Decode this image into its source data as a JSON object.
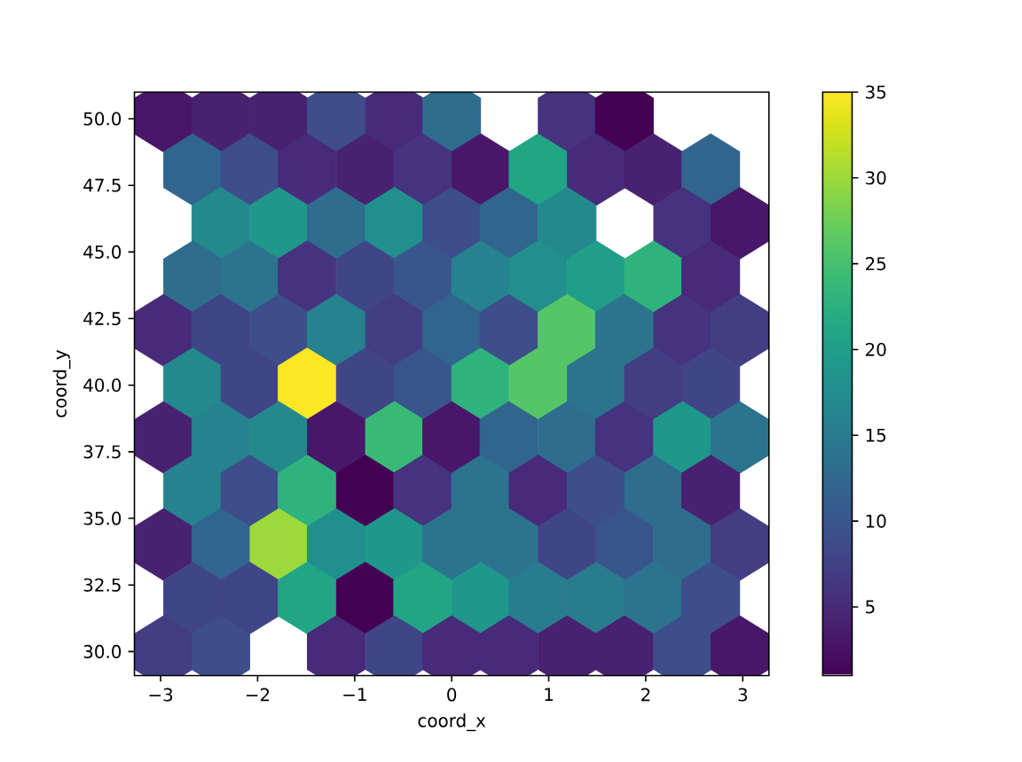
{
  "chart_data": {
    "type": "scatter",
    "xlabel": "coord_x",
    "ylabel": "coord_y",
    "x": [
      -2.97,
      -2.38,
      -1.78,
      -1.19,
      -0.59,
      0,
      1.19,
      1.78,
      -2.67,
      -2.08,
      -1.49,
      -0.89,
      -0.3,
      0.3,
      0.89,
      1.49,
      2.08,
      2.67,
      -2.38,
      -1.78,
      -1.19,
      -0.59,
      0,
      0.59,
      1.19,
      2.38,
      2.97,
      -2.67,
      -2.08,
      -1.49,
      -0.89,
      -0.3,
      0.3,
      0.89,
      1.49,
      2.08,
      2.67,
      -2.97,
      -2.38,
      -1.78,
      -1.19,
      -0.59,
      0,
      0.59,
      1.19,
      1.78,
      2.38,
      2.97,
      -2.67,
      -2.08,
      -1.49,
      -0.89,
      -0.3,
      0.3,
      0.89,
      1.49,
      2.08,
      2.67,
      -2.97,
      -2.38,
      -1.78,
      -1.19,
      -0.59,
      0,
      0.59,
      1.19,
      1.78,
      2.38,
      2.97,
      -2.67,
      -2.08,
      -1.49,
      -0.89,
      -0.3,
      0.3,
      0.89,
      1.49,
      2.08,
      2.67,
      -2.97,
      -2.38,
      -1.78,
      -1.19,
      -0.59,
      0,
      0.59,
      1.19,
      1.78,
      2.38,
      2.97,
      -2.67,
      -2.08,
      -1.49,
      -0.89,
      -0.3,
      0.3,
      0.89,
      1.49,
      2.08,
      2.67,
      -2.97,
      -2.38,
      -1.19,
      -0.59,
      0,
      0.59,
      1.19,
      1.78,
      2.38,
      2.97
    ],
    "values": [
      50.1,
      50.1,
      50.1,
      50.1,
      50.1,
      50.1,
      50.1,
      50.1,
      48.09,
      48.09,
      48.09,
      48.09,
      48.09,
      48.09,
      48.09,
      48.09,
      48.09,
      48.09,
      46.08,
      46.08,
      46.08,
      46.08,
      46.08,
      46.08,
      46.08,
      46.08,
      46.08,
      44.07,
      44.07,
      44.07,
      44.07,
      44.07,
      44.07,
      44.07,
      44.07,
      44.07,
      44.07,
      42.06,
      42.06,
      42.06,
      42.06,
      42.06,
      42.06,
      42.06,
      42.06,
      42.06,
      42.06,
      42.06,
      40.05,
      40.05,
      40.05,
      40.05,
      40.05,
      40.05,
      40.05,
      40.05,
      40.05,
      40.05,
      38.04,
      38.04,
      38.04,
      38.04,
      38.04,
      38.04,
      38.04,
      38.04,
      38.04,
      38.04,
      38.04,
      36.03,
      36.03,
      36.03,
      36.03,
      36.03,
      36.03,
      36.03,
      36.03,
      36.03,
      36.03,
      34.02,
      34.02,
      34.02,
      34.02,
      34.02,
      34.02,
      34.02,
      34.02,
      34.02,
      34.02,
      34.02,
      32.01,
      32.01,
      32.01,
      32.01,
      32.01,
      32.01,
      32.01,
      32.01,
      32.01,
      32.01,
      30,
      30,
      30,
      30,
      30,
      30,
      30,
      30,
      30,
      30
    ],
    "cvalues": [
      3,
      4,
      4,
      9,
      5,
      13,
      6,
      1,
      12,
      9,
      5,
      4,
      6,
      3,
      21,
      5,
      4,
      12,
      17,
      19,
      13,
      18,
      9,
      12,
      17,
      6,
      3,
      13,
      14,
      6,
      8,
      10,
      16,
      18,
      20,
      23,
      5,
      5,
      8,
      9,
      16,
      7,
      12,
      9,
      26,
      14,
      6,
      7,
      17,
      8,
      35,
      8,
      10,
      23,
      26,
      14,
      7,
      8,
      4,
      16,
      17,
      3,
      24,
      3,
      12,
      13,
      6,
      19,
      14,
      16,
      9,
      23,
      1,
      6,
      14,
      5,
      9,
      13,
      4,
      4,
      12,
      30,
      18,
      19,
      14,
      14,
      8,
      10,
      13,
      7,
      8,
      8,
      21,
      1,
      21,
      19,
      15,
      15,
      14,
      9,
      7,
      9,
      5,
      8,
      5,
      5,
      4,
      4,
      9,
      3
    ],
    "xlim": [
      -3.27,
      3.27
    ],
    "ylim": [
      29.1,
      51.0
    ],
    "xticks": [
      {
        "value": -3,
        "label": "−3"
      },
      {
        "value": -2,
        "label": "−2"
      },
      {
        "value": -1,
        "label": "−1"
      },
      0,
      1,
      2,
      3
    ],
    "yticks": [
      {
        "value": 30,
        "label": "30.0"
      },
      32.5,
      {
        "value": 35,
        "label": "35.0"
      },
      37.5,
      {
        "value": 40,
        "label": "40.0"
      },
      42.5,
      {
        "value": 45,
        "label": "45.0"
      },
      47.5,
      {
        "value": 50,
        "label": "50.0"
      }
    ],
    "clim": [
      1,
      35
    ],
    "cticks": [
      5,
      10,
      15,
      20,
      25,
      30,
      35
    ]
  }
}
